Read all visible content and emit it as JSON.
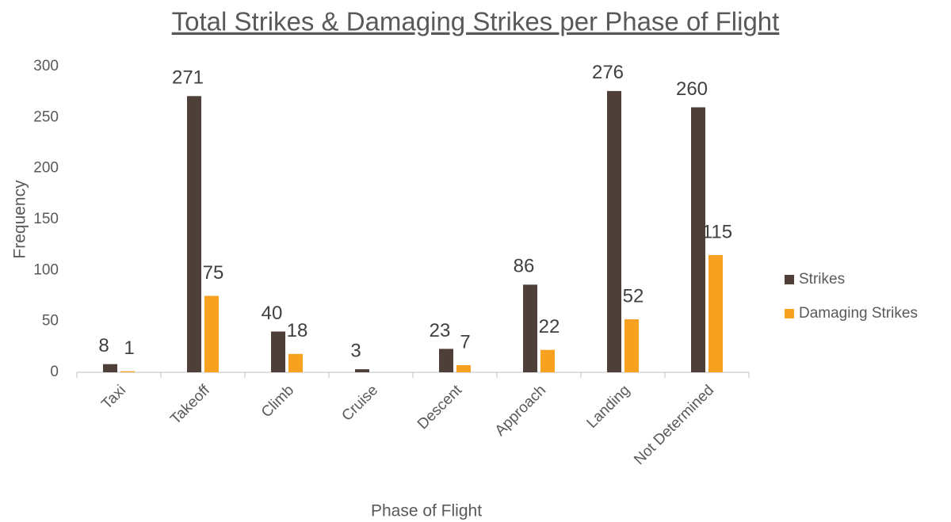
{
  "chart_data": {
    "type": "bar",
    "title": "Total Strikes & Damaging Strikes per Phase of Flight",
    "x_label": "Phase of Flight",
    "y_label": "Frequency",
    "categories": [
      "Taxi",
      "Takeoff",
      "Climb",
      "Cruise",
      "Descent",
      "Approach",
      "Landing",
      "Not Determined"
    ],
    "series": [
      {
        "name": "Strikes",
        "color": "#4e4039",
        "values": [
          8,
          271,
          40,
          3,
          23,
          86,
          276,
          260
        ]
      },
      {
        "name": "Damaging Strikes",
        "color": "#f8a020",
        "values": [
          1,
          75,
          18,
          null,
          7,
          22,
          52,
          115
        ]
      }
    ],
    "ylim": [
      0,
      300
    ],
    "yticks": [
      0,
      50,
      100,
      150,
      200,
      250,
      300
    ],
    "grid": false,
    "legend": "right"
  }
}
